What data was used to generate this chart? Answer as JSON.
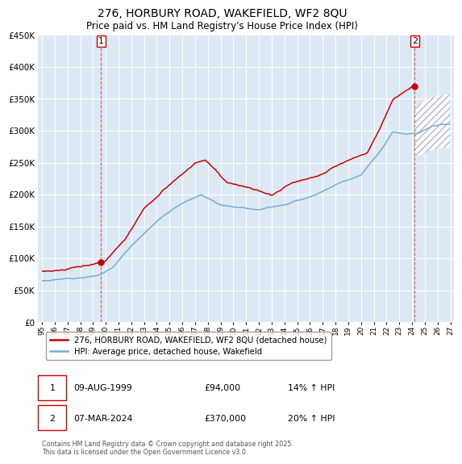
{
  "title": "276, HORBURY ROAD, WAKEFIELD, WF2 8QU",
  "subtitle": "Price paid vs. HM Land Registry's House Price Index (HPI)",
  "background_color": "#ffffff",
  "plot_bg_color": "#dce9f5",
  "grid_color": "#ffffff",
  "red_color": "#cc0000",
  "blue_color": "#7aadd4",
  "sale1_price": 94000,
  "sale2_price": 370000,
  "legend_entry1": "276, HORBURY ROAD, WAKEFIELD, WF2 8QU (detached house)",
  "legend_entry2": "HPI: Average price, detached house, Wakefield",
  "footer": "Contains HM Land Registry data © Crown copyright and database right 2025.\nThis data is licensed under the Open Government Licence v3.0.",
  "ylim": [
    0,
    450000
  ],
  "yticks": [
    0,
    50000,
    100000,
    150000,
    200000,
    250000,
    300000,
    350000,
    400000,
    450000
  ],
  "ytick_labels": [
    "£0",
    "£50K",
    "£100K",
    "£150K",
    "£200K",
    "£250K",
    "£300K",
    "£350K",
    "£400K",
    "£450K"
  ],
  "x_start_year": 1995,
  "x_end_year": 2027,
  "ann1_date": "09-AUG-1999",
  "ann1_price": "£94,000",
  "ann1_hpi": "14% ↑ HPI",
  "ann2_date": "07-MAR-2024",
  "ann2_price": "£370,000",
  "ann2_hpi": "20% ↑ HPI"
}
